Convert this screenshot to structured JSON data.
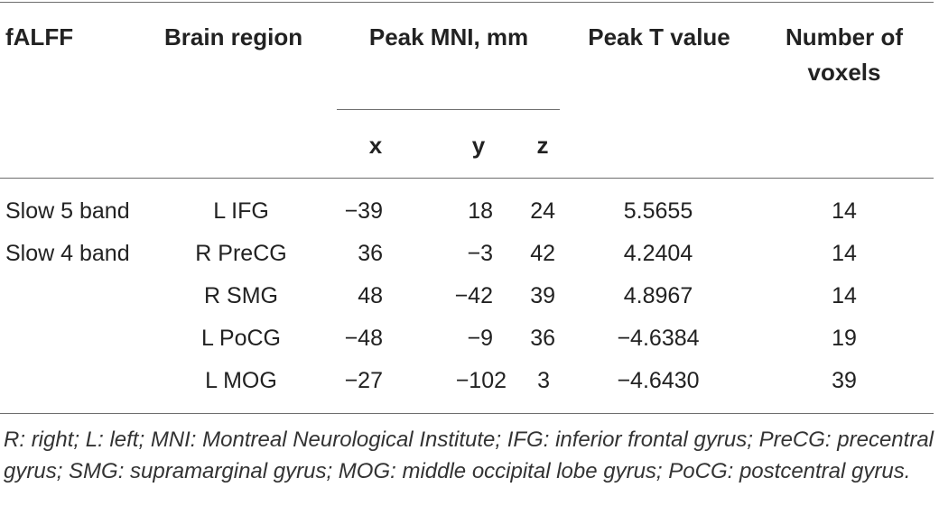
{
  "table": {
    "headers": {
      "falff": "fALFF",
      "brain_region": "Brain region",
      "peak_mni": "Peak MNI, mm",
      "peak_t": "Peak T value",
      "voxels_line1": "Number of",
      "voxels_line2": "voxels",
      "x": "x",
      "y": "y",
      "z": "z"
    },
    "rows": [
      {
        "falff": "Slow 5 band",
        "region": "L IFG",
        "x": "−39",
        "y": "18",
        "z": "24",
        "t": "5.5655",
        "voxels": "14"
      },
      {
        "falff": "Slow 4 band",
        "region": "R PreCG",
        "x": "36",
        "y": "−3",
        "z": "42",
        "t": "4.2404",
        "voxels": "14"
      },
      {
        "falff": "",
        "region": "R SMG",
        "x": "48",
        "y": "−42",
        "z": "39",
        "t": "4.8967",
        "voxels": "14"
      },
      {
        "falff": "",
        "region": "L PoCG",
        "x": "−48",
        "y": "−9",
        "z": "36",
        "t": "−4.6384",
        "voxels": "19"
      },
      {
        "falff": "",
        "region": "L MOG",
        "x": "−27",
        "y": "−102",
        "z": "3",
        "t": "−4.6430",
        "voxels": "39"
      }
    ]
  },
  "footnote": "R: right; L: left; MNI: Montreal Neurological Institute; IFG: inferior frontal gyrus; PreCG: precentral gyrus; SMG: supramarginal gyrus; MOG: middle occipital lobe gyrus; PoCG: postcentral gyrus."
}
